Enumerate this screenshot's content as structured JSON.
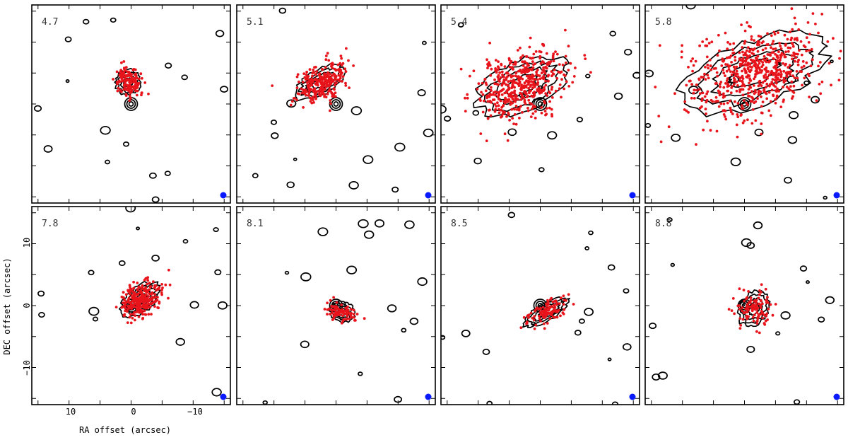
{
  "figure": {
    "x_axis_label": "RA offset (arcsec)",
    "y_axis_label": "DEC offset (arcsec)",
    "x_tick_labels": [
      "10",
      "0",
      "−10"
    ],
    "y_tick_labels": [
      "10",
      "0",
      "−10"
    ],
    "point_color": "#e8141b",
    "beam_color": "#0a1aff",
    "contour_color": "#000000"
  },
  "chart_data": {
    "type": "scatter",
    "x_range": [
      16,
      -16
    ],
    "y_range": [
      -16,
      16
    ],
    "panels": [
      {
        "label": "4.7",
        "center": [
          0.5,
          3.5
        ],
        "points_spread": [
          2.0,
          3.5
        ],
        "n_points": 140,
        "angle_deg": 35
      },
      {
        "label": "5.1",
        "center": [
          2.5,
          3.5
        ],
        "points_spread": [
          4.5,
          3.5
        ],
        "n_points": 260,
        "angle_deg": 30
      },
      {
        "label": "5.4",
        "center": [
          3.0,
          3.0
        ],
        "points_spread": [
          7.5,
          7.0
        ],
        "n_points": 480,
        "angle_deg": 25
      },
      {
        "label": "5.8",
        "center": [
          -1.5,
          5.0
        ],
        "points_spread": [
          12.0,
          9.0
        ],
        "n_points": 620,
        "angle_deg": 20
      },
      {
        "label": "7.8",
        "center": [
          -1.5,
          1.0
        ],
        "points_spread": [
          3.5,
          3.5
        ],
        "n_points": 280,
        "angle_deg": 40
      },
      {
        "label": "8.1",
        "center": [
          -1.0,
          -1.0
        ],
        "points_spread": [
          1.6,
          3.5
        ],
        "n_points": 90,
        "angle_deg": 70
      },
      {
        "label": "8.5",
        "center": [
          -1.0,
          -1.0
        ],
        "points_spread": [
          4.0,
          2.5
        ],
        "n_points": 110,
        "angle_deg": 30
      },
      {
        "label": "8.8",
        "center": [
          -1.5,
          -0.5
        ],
        "points_spread": [
          3.0,
          4.0
        ],
        "n_points": 110,
        "angle_deg": 60
      }
    ]
  }
}
